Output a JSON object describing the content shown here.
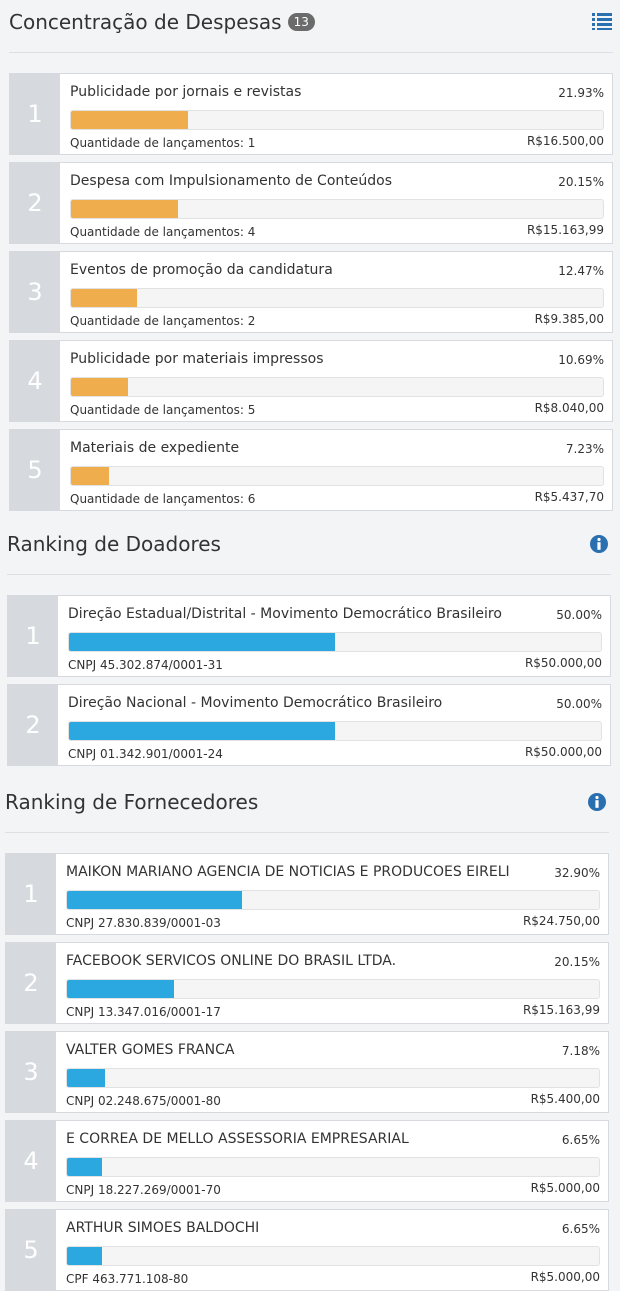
{
  "colors": {
    "expense_bar": "#f0ad4e",
    "ranking_bar": "#2ba8e0",
    "icon": "#2a6fb0"
  },
  "despesas": {
    "title": "Concentração de Despesas",
    "badge": "13",
    "icon": "list-icon",
    "items": [
      {
        "rank": "1",
        "name": "Publicidade por jornais e revistas",
        "pct": "21.93%",
        "fraction": 0.2193,
        "sub": "Quantidade de lançamentos: 1",
        "value": "R$16.500,00"
      },
      {
        "rank": "2",
        "name": "Despesa com Impulsionamento de Conteúdos",
        "pct": "20.15%",
        "fraction": 0.2015,
        "sub": "Quantidade de lançamentos: 4",
        "value": "R$15.163,99"
      },
      {
        "rank": "3",
        "name": "Eventos de promoção da candidatura",
        "pct": "12.47%",
        "fraction": 0.1247,
        "sub": "Quantidade de lançamentos: 2",
        "value": "R$9.385,00"
      },
      {
        "rank": "4",
        "name": "Publicidade por materiais impressos",
        "pct": "10.69%",
        "fraction": 0.1069,
        "sub": "Quantidade de lançamentos: 5",
        "value": "R$8.040,00"
      },
      {
        "rank": "5",
        "name": "Materiais de expediente",
        "pct": "7.23%",
        "fraction": 0.0723,
        "sub": "Quantidade de lançamentos: 6",
        "value": "R$5.437,70"
      }
    ]
  },
  "doadores": {
    "title": "Ranking de Doadores",
    "icon": "info-icon",
    "items": [
      {
        "rank": "1",
        "name": "Direção Estadual/Distrital - Movimento Democrático Brasileiro",
        "pct": "50.00%",
        "fraction": 0.5,
        "sub": "CNPJ 45.302.874/0001-31",
        "value": "R$50.000,00"
      },
      {
        "rank": "2",
        "name": "Direção Nacional - Movimento Democrático Brasileiro",
        "pct": "50.00%",
        "fraction": 0.5,
        "sub": "CNPJ 01.342.901/0001-24",
        "value": "R$50.000,00"
      }
    ]
  },
  "fornecedores": {
    "title": "Ranking de Fornecedores",
    "icon": "info-icon",
    "items": [
      {
        "rank": "1",
        "name": "MAIKON MARIANO AGENCIA DE NOTICIAS E PRODUCOES EIRELI",
        "pct": "32.90%",
        "fraction": 0.329,
        "sub": "CNPJ 27.830.839/0001-03",
        "value": "R$24.750,00"
      },
      {
        "rank": "2",
        "name": "FACEBOOK SERVICOS ONLINE DO BRASIL LTDA.",
        "pct": "20.15%",
        "fraction": 0.2015,
        "sub": "CNPJ 13.347.016/0001-17",
        "value": "R$15.163,99"
      },
      {
        "rank": "3",
        "name": "VALTER GOMES FRANCA",
        "pct": "7.18%",
        "fraction": 0.0718,
        "sub": "CNPJ 02.248.675/0001-80",
        "value": "R$5.400,00"
      },
      {
        "rank": "4",
        "name": "E CORREA DE MELLO ASSESSORIA EMPRESARIAL",
        "pct": "6.65%",
        "fraction": 0.0665,
        "sub": "CNPJ 18.227.269/0001-70",
        "value": "R$5.000,00"
      },
      {
        "rank": "5",
        "name": "ARTHUR SIMOES BALDOCHI",
        "pct": "6.65%",
        "fraction": 0.0665,
        "sub": "CPF 463.771.108-80",
        "value": "R$5.000,00"
      }
    ]
  }
}
